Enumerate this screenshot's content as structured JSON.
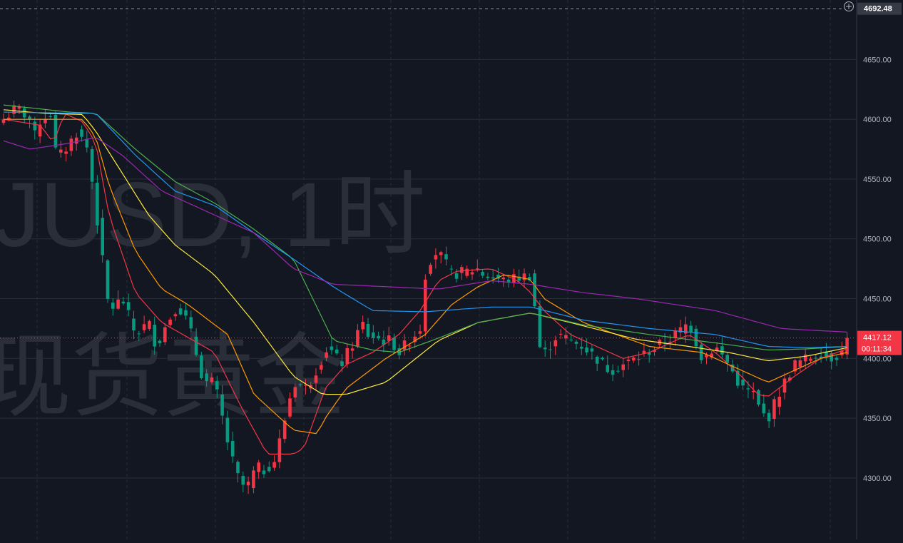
{
  "watermark": {
    "line1": "JUSD, 1时",
    "line2": "现货黄金"
  },
  "price_axis": {
    "ticks": [
      "4650.00",
      "4600.00",
      "4550.00",
      "4500.00",
      "4450.00",
      "4400.00",
      "4350.00",
      "4300.00"
    ],
    "crosshair_price": "4692.48",
    "last_price": "4417.12",
    "countdown": "00:11:34"
  },
  "colors": {
    "background": "#131722",
    "up": "#f23645",
    "down": "#089981",
    "ma_colors": [
      "#f23645",
      "#ff9800",
      "#ffeb3b",
      "#4caf50",
      "#2196f3",
      "#9c27b0"
    ]
  },
  "chart_data": {
    "type": "candlestick",
    "timeframe": "1h",
    "ylim": [
      4285,
      4695
    ],
    "bars": 163,
    "x": [],
    "series": [
      {
        "key": "close",
        "anchors": [
          [
            0,
            4600
          ],
          [
            5,
            4610
          ],
          [
            10,
            4600
          ],
          [
            12,
            4585
          ],
          [
            14,
            4600
          ],
          [
            18,
            4605
          ],
          [
            19,
            4575
          ],
          [
            22,
            4570
          ],
          [
            28,
            4590
          ],
          [
            32,
            4575
          ],
          [
            40,
            4440
          ],
          [
            45,
            4450
          ],
          [
            50,
            4420
          ],
          [
            55,
            4430
          ],
          [
            58,
            4410
          ],
          [
            62,
            4430
          ],
          [
            66,
            4445
          ],
          [
            70,
            4430
          ],
          [
            76,
            4380
          ],
          [
            80,
            4380
          ],
          [
            86,
            4320
          ],
          [
            89,
            4300
          ],
          [
            92,
            4290
          ],
          [
            96,
            4310
          ],
          [
            98,
            4305
          ],
          [
            103,
            4315
          ],
          [
            110,
            4380
          ],
          [
            115,
            4375
          ],
          [
            123,
            4410
          ],
          [
            128,
            4395
          ],
          [
            132,
            4410
          ],
          [
            136,
            4430
          ],
          [
            138,
            4420
          ],
          [
            144,
            4415
          ],
          [
            147,
            4415
          ],
          [
            150,
            4405
          ],
          [
            158,
            4425
          ],
          [
            160,
            4470
          ],
          [
            163,
            4490
          ],
          [
            166,
            4485
          ],
          [
            170,
            4470
          ],
          [
            180,
            4475
          ],
          [
            182,
            4470
          ],
          [
            190,
            4465
          ],
          [
            200,
            4470
          ],
          [
            204,
            4400
          ],
          [
            210,
            4420
          ],
          [
            220,
            4410
          ],
          [
            230,
            4390
          ],
          [
            240,
            4400
          ],
          [
            248,
            4410
          ],
          [
            255,
            4420
          ],
          [
            260,
            4430
          ],
          [
            265,
            4400
          ],
          [
            270,
            4410
          ],
          [
            275,
            4395
          ],
          [
            280,
            4375
          ],
          [
            285,
            4370
          ],
          [
            287,
            4355
          ],
          [
            290,
            4350
          ],
          [
            295,
            4375
          ],
          [
            300,
            4395
          ],
          [
            305,
            4400
          ],
          [
            310,
            4405
          ],
          [
            313,
            4400
          ],
          [
            318,
            4405
          ],
          [
            320,
            4417.12
          ]
        ]
      },
      {
        "key": "ma_a",
        "anchors": [
          [
            0,
            4600
          ],
          [
            14,
            4595
          ],
          [
            19,
            4580
          ],
          [
            23,
            4605
          ],
          [
            30,
            4598
          ],
          [
            35,
            4580
          ],
          [
            40,
            4520
          ],
          [
            50,
            4455
          ],
          [
            60,
            4430
          ],
          [
            80,
            4405
          ],
          [
            90,
            4360
          ],
          [
            100,
            4320
          ],
          [
            110,
            4320
          ],
          [
            114,
            4325
          ],
          [
            122,
            4375
          ],
          [
            130,
            4395
          ],
          [
            140,
            4405
          ],
          [
            150,
            4420
          ],
          [
            158,
            4440
          ],
          [
            165,
            4465
          ],
          [
            172,
            4473
          ],
          [
            185,
            4475
          ],
          [
            195,
            4465
          ],
          [
            200,
            4455
          ],
          [
            205,
            4440
          ],
          [
            215,
            4420
          ],
          [
            235,
            4400
          ],
          [
            245,
            4405
          ],
          [
            260,
            4420
          ],
          [
            270,
            4405
          ],
          [
            280,
            4385
          ],
          [
            286,
            4370
          ],
          [
            290,
            4368
          ],
          [
            300,
            4385
          ],
          [
            310,
            4400
          ],
          [
            320,
            4408
          ]
        ]
      },
      {
        "key": "ma_b",
        "anchors": [
          [
            0,
            4600
          ],
          [
            20,
            4600
          ],
          [
            30,
            4600
          ],
          [
            35,
            4585
          ],
          [
            40,
            4545
          ],
          [
            50,
            4490
          ],
          [
            60,
            4458
          ],
          [
            70,
            4445
          ],
          [
            85,
            4420
          ],
          [
            95,
            4370
          ],
          [
            110,
            4340
          ],
          [
            119,
            4337
          ],
          [
            122,
            4350
          ],
          [
            130,
            4375
          ],
          [
            145,
            4400
          ],
          [
            160,
            4420
          ],
          [
            170,
            4445
          ],
          [
            180,
            4460
          ],
          [
            190,
            4470
          ],
          [
            200,
            4466
          ],
          [
            205,
            4450
          ],
          [
            220,
            4430
          ],
          [
            245,
            4410
          ],
          [
            265,
            4405
          ],
          [
            280,
            4390
          ],
          [
            290,
            4380
          ],
          [
            300,
            4390
          ],
          [
            310,
            4400
          ],
          [
            320,
            4405
          ]
        ]
      },
      {
        "key": "ma_c",
        "anchors": [
          [
            0,
            4608
          ],
          [
            15,
            4605
          ],
          [
            30,
            4604
          ],
          [
            35,
            4590
          ],
          [
            45,
            4555
          ],
          [
            55,
            4520
          ],
          [
            65,
            4495
          ],
          [
            80,
            4470
          ],
          [
            95,
            4430
          ],
          [
            110,
            4385
          ],
          [
            121,
            4370
          ],
          [
            130,
            4370
          ],
          [
            145,
            4380
          ],
          [
            165,
            4415
          ],
          [
            180,
            4430
          ],
          [
            200,
            4438
          ],
          [
            215,
            4430
          ],
          [
            240,
            4416
          ],
          [
            260,
            4410
          ],
          [
            275,
            4405
          ],
          [
            290,
            4398
          ],
          [
            305,
            4402
          ],
          [
            320,
            4409
          ]
        ]
      },
      {
        "key": "ma_d",
        "anchors": [
          [
            0,
            4612
          ],
          [
            25,
            4606
          ],
          [
            35,
            4605
          ],
          [
            50,
            4575
          ],
          [
            65,
            4548
          ],
          [
            80,
            4530
          ],
          [
            95,
            4508
          ],
          [
            110,
            4483
          ],
          [
            125,
            4415
          ],
          [
            140,
            4407
          ],
          [
            150,
            4405
          ],
          [
            165,
            4417
          ],
          [
            180,
            4430
          ],
          [
            200,
            4438
          ],
          [
            220,
            4428
          ],
          [
            245,
            4420
          ],
          [
            270,
            4413
          ],
          [
            290,
            4407
          ],
          [
            305,
            4408
          ],
          [
            320,
            4410
          ]
        ]
      },
      {
        "key": "ma_e",
        "anchors": [
          [
            0,
            4606
          ],
          [
            30,
            4605
          ],
          [
            35,
            4605
          ],
          [
            50,
            4570
          ],
          [
            65,
            4540
          ],
          [
            80,
            4528
          ],
          [
            95,
            4505
          ],
          [
            110,
            4483
          ],
          [
            125,
            4460
          ],
          [
            140,
            4440
          ],
          [
            160,
            4439
          ],
          [
            185,
            4443
          ],
          [
            200,
            4443
          ],
          [
            220,
            4432
          ],
          [
            245,
            4425
          ],
          [
            270,
            4420
          ],
          [
            290,
            4410
          ],
          [
            305,
            4409
          ],
          [
            320,
            4410
          ]
        ]
      },
      {
        "key": "ma_f",
        "anchors": [
          [
            0,
            4582
          ],
          [
            10,
            4575
          ],
          [
            25,
            4580
          ],
          [
            35,
            4585
          ],
          [
            45,
            4570
          ],
          [
            60,
            4540
          ],
          [
            80,
            4520
          ],
          [
            95,
            4505
          ],
          [
            110,
            4475
          ],
          [
            125,
            4462
          ],
          [
            145,
            4460
          ],
          [
            165,
            4458
          ],
          [
            185,
            4465
          ],
          [
            200,
            4462
          ],
          [
            220,
            4455
          ],
          [
            240,
            4450
          ],
          [
            270,
            4440
          ],
          [
            295,
            4425
          ],
          [
            320,
            4422
          ]
        ]
      }
    ]
  }
}
